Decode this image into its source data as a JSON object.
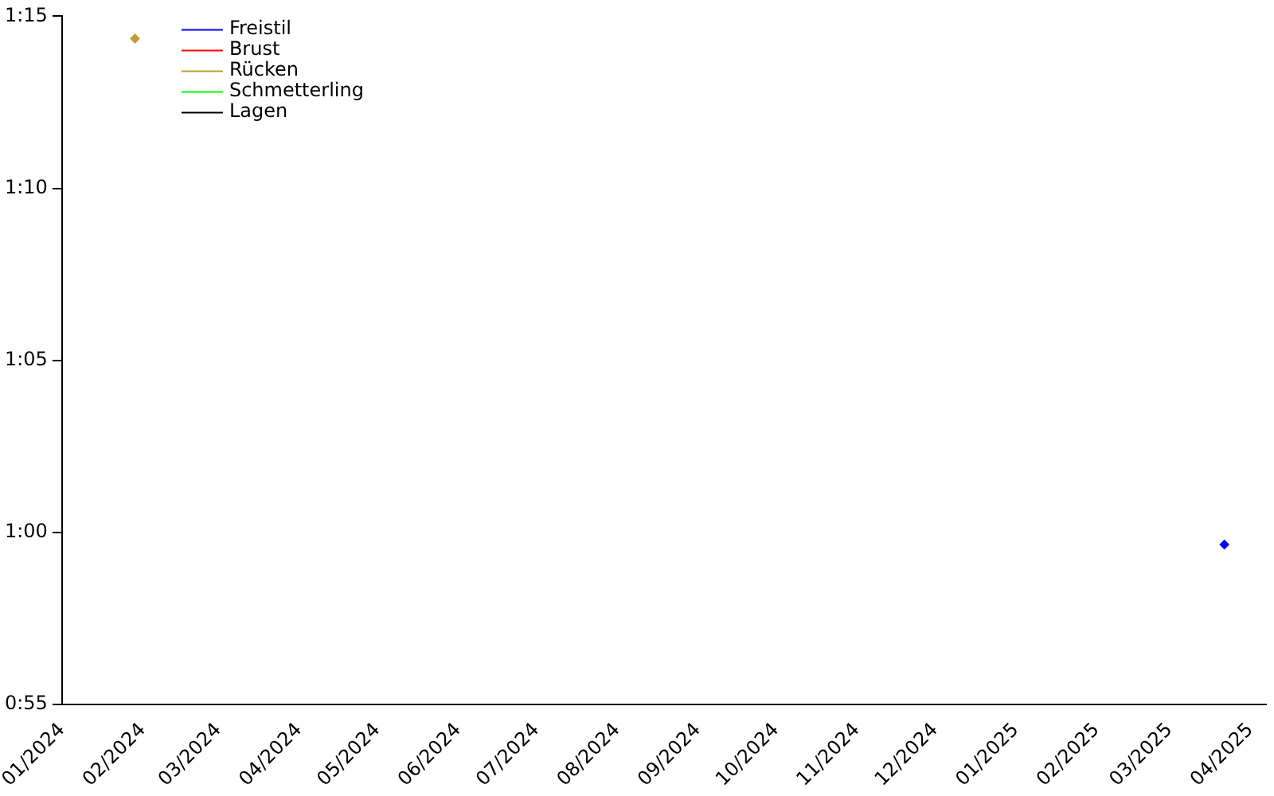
{
  "chart_data": {
    "type": "line",
    "marker": "diamond",
    "legend": "top left",
    "grid": false,
    "xlim": [
      "2024-01-01",
      "2025-04-07"
    ],
    "xticks": [
      {
        "value": "2024-01-01",
        "label": "01/2024"
      },
      {
        "value": "2024-02-01",
        "label": "02/2024"
      },
      {
        "value": "2024-03-01",
        "label": "03/2024"
      },
      {
        "value": "2024-04-01",
        "label": "04/2024"
      },
      {
        "value": "2024-05-01",
        "label": "05/2024"
      },
      {
        "value": "2024-06-01",
        "label": "06/2024"
      },
      {
        "value": "2024-07-01",
        "label": "07/2024"
      },
      {
        "value": "2024-08-01",
        "label": "08/2024"
      },
      {
        "value": "2024-09-01",
        "label": "09/2024"
      },
      {
        "value": "2024-10-01",
        "label": "10/2024"
      },
      {
        "value": "2024-11-01",
        "label": "11/2024"
      },
      {
        "value": "2024-12-01",
        "label": "12/2024"
      },
      {
        "value": "2025-01-01",
        "label": "01/2025"
      },
      {
        "value": "2025-02-01",
        "label": "02/2025"
      },
      {
        "value": "2025-03-01",
        "label": "03/2025"
      },
      {
        "value": "2025-04-01",
        "label": "04/2025"
      }
    ],
    "ylim": [
      55,
      75
    ],
    "yticks": [
      {
        "value": 55,
        "label": "0:55"
      },
      {
        "value": 60,
        "label": "1:00"
      },
      {
        "value": 65,
        "label": "1:05"
      },
      {
        "value": 70,
        "label": "1:10"
      },
      {
        "value": 75,
        "label": "1:15"
      }
    ],
    "series": [
      {
        "name": "Freistil",
        "color": "#0000ff",
        "x": [
          "2025-03-22"
        ],
        "values": [
          59.65
        ]
      },
      {
        "name": "Brust",
        "color": "#ff0000"
      },
      {
        "name": "Rücken",
        "color": "#c0a030",
        "x": [
          "2024-01-29"
        ],
        "values": [
          74.35
        ]
      },
      {
        "name": "Schmetterling",
        "color": "#00ff00"
      },
      {
        "name": "Lagen",
        "color": "#000000"
      }
    ]
  }
}
